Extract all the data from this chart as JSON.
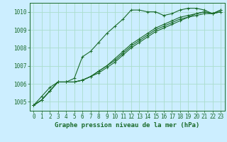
{
  "xlabel": "Graphe pression niveau de la mer (hPa)",
  "background_color": "#cceeff",
  "grid_color": "#aaddcc",
  "line_color": "#1a6b2a",
  "hours": [
    0,
    1,
    2,
    3,
    4,
    5,
    6,
    7,
    8,
    9,
    10,
    11,
    12,
    13,
    14,
    15,
    16,
    17,
    18,
    19,
    20,
    21,
    22,
    23
  ],
  "series": [
    [
      1004.8,
      1005.3,
      1005.8,
      1006.1,
      1006.1,
      1006.3,
      1007.5,
      1007.8,
      1008.3,
      1008.8,
      1009.2,
      1009.6,
      1010.1,
      1010.1,
      1010.0,
      1010.0,
      1009.8,
      1009.9,
      1010.1,
      1010.2,
      1010.2,
      1010.1,
      1009.9,
      1010.1
    ],
    [
      1004.8,
      1005.1,
      1005.6,
      1006.1,
      1006.1,
      1006.1,
      1006.2,
      1006.4,
      1006.6,
      1006.9,
      1007.2,
      1007.6,
      1008.0,
      1008.3,
      1008.6,
      1008.9,
      1009.1,
      1009.3,
      1009.5,
      1009.7,
      1009.9,
      1010.0,
      1009.9,
      1010.1
    ],
    [
      1004.8,
      1005.1,
      1005.6,
      1006.1,
      1006.1,
      1006.1,
      1006.2,
      1006.4,
      1006.7,
      1007.0,
      1007.3,
      1007.7,
      1008.1,
      1008.4,
      1008.7,
      1009.0,
      1009.2,
      1009.4,
      1009.6,
      1009.7,
      1009.8,
      1009.9,
      1009.9,
      1010.0
    ],
    [
      1004.8,
      1005.1,
      1005.6,
      1006.1,
      1006.1,
      1006.1,
      1006.2,
      1006.4,
      1006.7,
      1007.0,
      1007.4,
      1007.8,
      1008.2,
      1008.5,
      1008.8,
      1009.1,
      1009.3,
      1009.5,
      1009.7,
      1009.8,
      1009.9,
      1010.0,
      1009.9,
      1010.0
    ]
  ],
  "ylim": [
    1004.5,
    1010.5
  ],
  "yticks": [
    1005,
    1006,
    1007,
    1008,
    1009,
    1010
  ],
  "marker": "+",
  "markersize": 3,
  "linewidth": 0.8,
  "tick_fontsize": 5.5,
  "label_fontsize": 6.5
}
